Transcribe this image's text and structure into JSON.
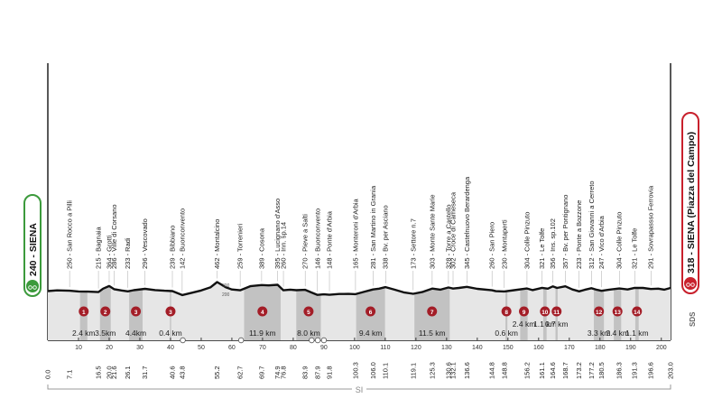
{
  "start": {
    "label": "240 - SIENA"
  },
  "finish": {
    "label": "318 - SIENA (Piazza del Campo)"
  },
  "colors": {
    "profile_fill": "#e6e6e6",
    "sector_fill": "#c2c2c2",
    "profile_line": "#111111",
    "marker_red": "#a31d27",
    "start_green": "#3c9a3c",
    "finish_red": "#c8202c"
  },
  "chart_data": {
    "type": "area",
    "x_unit": "km",
    "x_range": [
      0,
      203
    ],
    "x_ticks": [
      "10",
      "20",
      "30",
      "40",
      "50",
      "60",
      "70",
      "80",
      "90",
      "100",
      "110",
      "120",
      "130",
      "140",
      "150",
      "160",
      "170",
      "180",
      "190",
      "200"
    ],
    "elevation_labels": [
      "200",
      "300"
    ],
    "footer_label": "SI",
    "corner_logo": "SDS",
    "places": [
      {
        "km": 7.1,
        "label": "250 - San Rocco a Pilli"
      },
      {
        "km": 16.5,
        "label": "215 - Bagnaia"
      },
      {
        "km": 20.0,
        "label": "364 - Grotti"
      },
      {
        "km": 21.6,
        "label": "286 - Ville di Corsano"
      },
      {
        "km": 26.1,
        "label": "233 - Radi"
      },
      {
        "km": 31.7,
        "label": "296 - Vescovado"
      },
      {
        "km": 40.6,
        "label": "239 - Bibbiano"
      },
      {
        "km": 43.8,
        "label": "142 - Buonconvento"
      },
      {
        "km": 55.2,
        "label": "462 - Montalcino"
      },
      {
        "km": 62.7,
        "label": "259 - Torrenieri"
      },
      {
        "km": 69.7,
        "label": "389 - Cosona"
      },
      {
        "km": 74.9,
        "label": "395 - Lucignano d'Asso"
      },
      {
        "km": 76.8,
        "label": "260 - Inn. sp.14"
      },
      {
        "km": 83.9,
        "label": "270 - Pieve a Salti"
      },
      {
        "km": 87.9,
        "label": "146 - Buonconvento"
      },
      {
        "km": 91.8,
        "label": "148 - Ponte d'Arbia"
      },
      {
        "km": 100.3,
        "label": "165 - Monteroni d'Arbia"
      },
      {
        "km": 106.0,
        "label": "281 - San Martino in Grania"
      },
      {
        "km": 110.1,
        "label": "338 - Bv. per Asciano"
      },
      {
        "km": 119.1,
        "label": "173 - Settore n.7"
      },
      {
        "km": 125.3,
        "label": "303 - Monte Sante Marie"
      },
      {
        "km": 130.6,
        "label": "328 - Torre a Castello"
      },
      {
        "km": 132.1,
        "label": "302 - Croce di Cameseca"
      },
      {
        "km": 136.6,
        "label": "345 - Castelnuovo Berardenga"
      },
      {
        "km": 144.8,
        "label": "260 - San Piero"
      },
      {
        "km": 148.8,
        "label": "230 - Montaperti"
      },
      {
        "km": 156.2,
        "label": "304 - Colle Pinzuto"
      },
      {
        "km": 161.1,
        "label": "321 - Le Tolfe"
      },
      {
        "km": 164.6,
        "label": "356 - Ins. sp.102"
      },
      {
        "km": 168.7,
        "label": "357 - Bv. per Pontignano"
      },
      {
        "km": 173.2,
        "label": "233 - Ponte a Bozzone"
      },
      {
        "km": 177.2,
        "label": "312 - San Giovanni a Cerreto"
      },
      {
        "km": 180.5,
        "label": "247 - Vico d'Arbia"
      },
      {
        "km": 186.3,
        "label": "304 - Colle Pinzuto"
      },
      {
        "km": 191.3,
        "label": "321 - Le Tolfe"
      },
      {
        "km": 196.6,
        "label": "291 - Sovrapassso Ferrovia"
      }
    ],
    "km_markers": [
      "0.0",
      "7.1",
      "16.5",
      "20.0",
      "21.6",
      "26.1",
      "31.7",
      "40.6",
      "43.8",
      "55.2",
      "62.7",
      "69.7",
      "74.9",
      "76.8",
      "83.9",
      "87.9",
      "91.8",
      "100.3",
      "106.0",
      "110.1",
      "119.1",
      "125.3",
      "130.6",
      "132.1",
      "136.6",
      "144.8",
      "148.8",
      "156.2",
      "161.1",
      "164.6",
      "168.7",
      "173.2",
      "177.2",
      "180.5",
      "186.3",
      "191.3",
      "196.6",
      "203.0"
    ],
    "sectors": [
      {
        "n": "1",
        "start": 10.5,
        "length": "2.4 km"
      },
      {
        "n": "2",
        "start": 17.0,
        "length": "3.5km"
      },
      {
        "n": "3",
        "start": 26.5,
        "length": "4.4km"
      },
      {
        "n": "3bis",
        "start": 39.8,
        "length": "0.4 km"
      },
      {
        "n": "4",
        "start": 64.0,
        "length": "11.9 km"
      },
      {
        "n": "5",
        "start": 81.0,
        "length": "8.0 km"
      },
      {
        "n": "6",
        "start": 100.5,
        "length": "9.4 km"
      },
      {
        "n": "7",
        "start": 119.5,
        "length": "11.5 km"
      },
      {
        "n": "8",
        "start": 149.2,
        "length": "0.6 km"
      },
      {
        "n": "9",
        "start": 154.0,
        "length": "2.4 km"
      },
      {
        "n": "10",
        "start": 161.5,
        "length": "1.1 km"
      },
      {
        "n": "11",
        "start": 165.5,
        "length": "0.7 km"
      },
      {
        "n": "12",
        "start": 178.0,
        "length": "3.3 km"
      },
      {
        "n": "13",
        "start": 184.5,
        "length": "2.4 km"
      },
      {
        "n": "14",
        "start": 191.5,
        "length": "1.1 km"
      }
    ],
    "profile_km": [
      0,
      3,
      7.1,
      10,
      13,
      16.5,
      18,
      20,
      21.6,
      24,
      26.1,
      28,
      31.7,
      35,
      38,
      40.6,
      43.8,
      47,
      50,
      53,
      55.2,
      58,
      60,
      62.7,
      66,
      69.7,
      72,
      74.9,
      76.8,
      79,
      81,
      83.9,
      86,
      87.9,
      90,
      91.8,
      95,
      98,
      100.3,
      103,
      106,
      108,
      110.1,
      113,
      116,
      119.1,
      122,
      125.3,
      128,
      130.6,
      132.1,
      134,
      136.6,
      140,
      144.8,
      146,
      148.8,
      152,
      156.2,
      158,
      161.1,
      163,
      164.6,
      166,
      168.7,
      171,
      173.2,
      175,
      177.2,
      179,
      180.5,
      183,
      186.3,
      189,
      191.3,
      194,
      196.6,
      199,
      201,
      203
    ],
    "profile_m": [
      240,
      258,
      250,
      232,
      226,
      215,
      300,
      364,
      286,
      255,
      233,
      262,
      296,
      265,
      250,
      239,
      142,
      200,
      255,
      330,
      462,
      335,
      280,
      259,
      360,
      389,
      380,
      395,
      260,
      275,
      262,
      270,
      205,
      146,
      160,
      148,
      168,
      170,
      165,
      220,
      281,
      300,
      338,
      275,
      210,
      173,
      215,
      303,
      275,
      328,
      302,
      318,
      345,
      295,
      260,
      238,
      230,
      262,
      304,
      265,
      321,
      300,
      356,
      318,
      357,
      280,
      233,
      270,
      312,
      272,
      247,
      275,
      304,
      280,
      321,
      318,
      291,
      300,
      275,
      318
    ]
  }
}
